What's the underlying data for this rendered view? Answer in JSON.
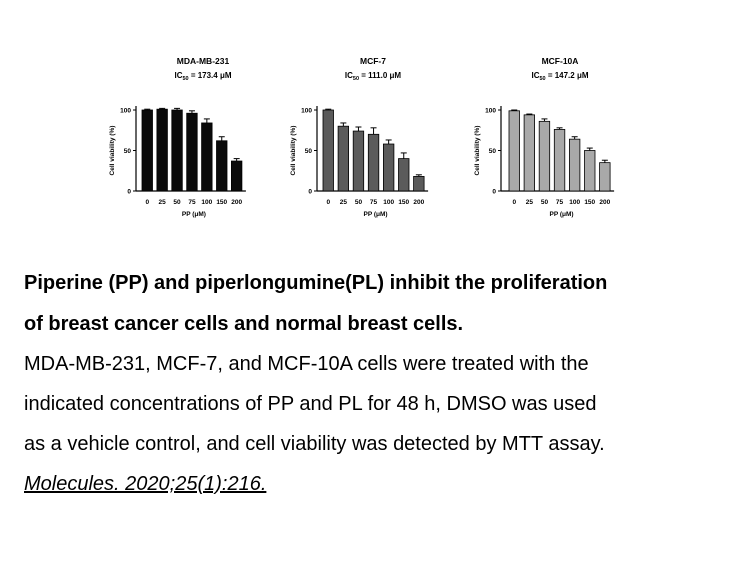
{
  "chart_data": [
    {
      "type": "bar",
      "title": "MDA-MB-231",
      "subtitle": {
        "prefix": "IC",
        "sub": "50",
        "suffix": " = 173.4 μM"
      },
      "categories": [
        "0",
        "25",
        "50",
        "75",
        "100",
        "150",
        "200"
      ],
      "values": [
        100,
        101,
        100,
        96,
        84,
        62,
        37
      ],
      "errors": [
        1,
        1,
        2,
        3,
        5,
        5,
        3
      ],
      "xlabel": "PP (μM)",
      "ylabel": "Cell viability (%)",
      "ylim": [
        0,
        100
      ],
      "yticks": [
        "0",
        "50",
        "100"
      ],
      "color": "#0a0a0a"
    },
    {
      "type": "bar",
      "title": "MCF-7",
      "subtitle": {
        "prefix": "IC",
        "sub": "50",
        "suffix": " = 111.0 μM"
      },
      "categories": [
        "0",
        "25",
        "50",
        "75",
        "100",
        "150",
        "200"
      ],
      "values": [
        100,
        80,
        74,
        70,
        58,
        40,
        18
      ],
      "errors": [
        1,
        4,
        5,
        8,
        5,
        7,
        2
      ],
      "xlabel": "PP (μM)",
      "ylabel": "Cell viability (%)",
      "ylim": [
        0,
        100
      ],
      "yticks": [
        "0",
        "50",
        "100"
      ],
      "color": "#5b5b5b"
    },
    {
      "type": "bar",
      "title": "MCF-10A",
      "subtitle": {
        "prefix": "IC",
        "sub": "50",
        "suffix": " = 147.2 μM"
      },
      "categories": [
        "0",
        "25",
        "50",
        "75",
        "100",
        "150",
        "200"
      ],
      "values": [
        99,
        94,
        86,
        76,
        64,
        50,
        35
      ],
      "errors": [
        1,
        1,
        3,
        2,
        3,
        3,
        3
      ],
      "xlabel": "PP (μM)",
      "ylabel": "Cell viability (%)",
      "ylim": [
        0,
        100
      ],
      "yticks": [
        "0",
        "50",
        "100"
      ],
      "color": "#a9a9a9"
    }
  ],
  "caption": {
    "title_line1": "Piperine (PP) and piperlongumine(PL) inhibit the proliferation",
    "title_line2": "of breast cancer cells and normal breast cells.",
    "body_line1": "MDA-MB-231, MCF-7, and MCF-10A cells were treated with the",
    "body_line2": "indicated concentrations of PP and PL for 48 h, DMSO was used",
    "body_line3": "as a vehicle control, and cell viability was detected by MTT assay.",
    "citation": "Molecules. 2020;25(1):216."
  }
}
